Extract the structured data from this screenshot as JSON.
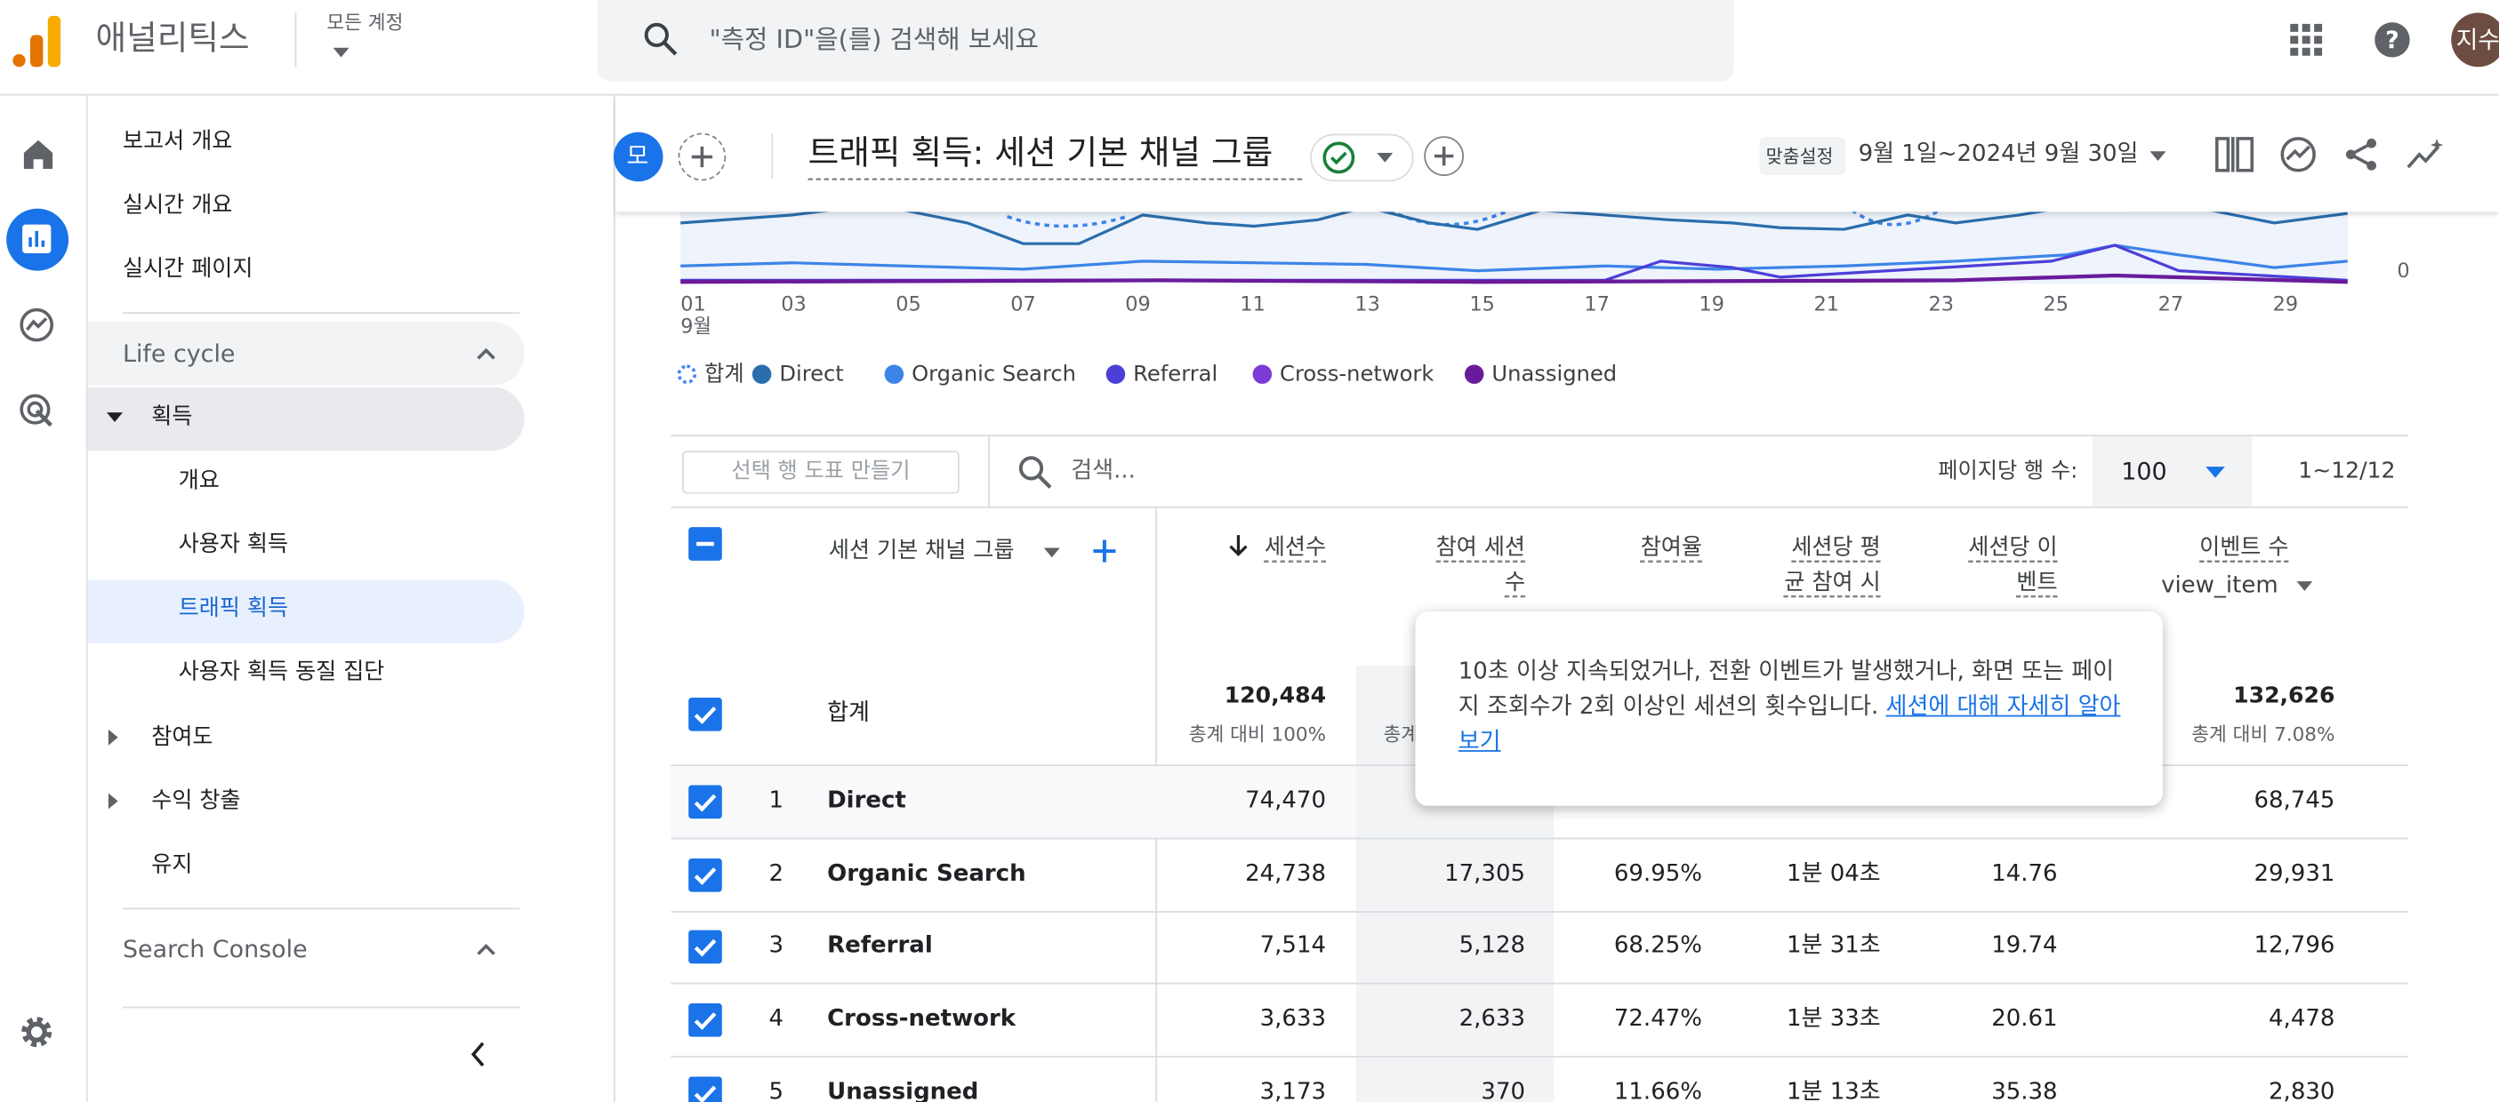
{
  "header": {
    "app_name": "애널리틱스",
    "account_label": "모든 계정",
    "search_placeholder": "\"측정 ID\"을(를) 검색해 보세요",
    "avatar": "지수"
  },
  "sidebar": {
    "top": [
      "보고서 개요",
      "실시간 개요",
      "실시간 페이지"
    ],
    "section": "Life cycle",
    "group": "획득",
    "sub": [
      "개요",
      "사용자 획득",
      "트래픽 획득",
      "사용자 획득 동질 집단"
    ],
    "others": [
      "참여도",
      "수익 창출",
      "유지"
    ],
    "search_console": "Search Console"
  },
  "report": {
    "badge": "모",
    "title": "트래픽 획득: 세션 기본 채널 그룹",
    "date_label": "맞춤설정",
    "date_range": "9월 1일~2024년 9월 30일"
  },
  "chart": {
    "x_labels": [
      "01",
      "03",
      "05",
      "07",
      "09",
      "11",
      "13",
      "15",
      "17",
      "19",
      "21",
      "23",
      "25",
      "27",
      "29"
    ],
    "month_label": "9월",
    "y_label": "0",
    "legend": [
      {
        "name": "합계",
        "color": "#4285f4"
      },
      {
        "name": "Direct",
        "color": "#2a6ead"
      },
      {
        "name": "Organic Search",
        "color": "#3d84e8"
      },
      {
        "name": "Referral",
        "color": "#4c3fd8"
      },
      {
        "name": "Cross-network",
        "color": "#7b3bd6"
      },
      {
        "name": "Unassigned",
        "color": "#6a1b9a"
      }
    ]
  },
  "toolbar": {
    "make_chart": "선택 행 도표 만들기",
    "search": "검색...",
    "rows_per_page_label": "페이지당 행 수:",
    "rows_per_page": "100",
    "range": "1~12/12"
  },
  "table": {
    "dimension_header": "세션 기본 채널 그룹",
    "columns": [
      "세션수",
      "참여 세션수",
      "참여율",
      "세션당 평균 참여 시간",
      "세션당 이벤트",
      "이벤트 수"
    ],
    "event_filter": "view_item",
    "total": {
      "label": "합계",
      "sessions": "120,484",
      "sessions_pct": "총계 대비 100%",
      "engaged_pct": "총계",
      "events": "132,626",
      "events_pct": "총계 대비 7.08%"
    },
    "rows": [
      {
        "index": 1,
        "channel": "Direct",
        "sessions": "74,470",
        "events": "68,745"
      },
      {
        "index": 2,
        "channel": "Organic Search",
        "sessions": "24,738",
        "engaged": "17,305",
        "rate": "69.95%",
        "time": "1분 04초",
        "per_session": "14.76",
        "events": "29,931"
      },
      {
        "index": 3,
        "channel": "Referral",
        "sessions": "7,514",
        "engaged": "5,128",
        "rate": "68.25%",
        "time": "1분 31초",
        "per_session": "19.74",
        "events": "12,796"
      },
      {
        "index": 4,
        "channel": "Cross-network",
        "sessions": "3,633",
        "engaged": "2,633",
        "rate": "72.47%",
        "time": "1분 33초",
        "per_session": "20.61",
        "events": "4,478"
      },
      {
        "index": 5,
        "channel": "Unassigned",
        "sessions": "3,173",
        "engaged": "370",
        "rate": "11.66%",
        "time": "1분 13초",
        "per_session": "35.38",
        "events": "2,830"
      }
    ]
  },
  "tooltip": {
    "text": "10초 이상 지속되었거나, 전환 이벤트가 발생했거나, 화면 또는 페이지 조회수가 2회 이상인 세션의 횟수입니다. ",
    "link": "세션에 대해 자세히 알아보기"
  }
}
